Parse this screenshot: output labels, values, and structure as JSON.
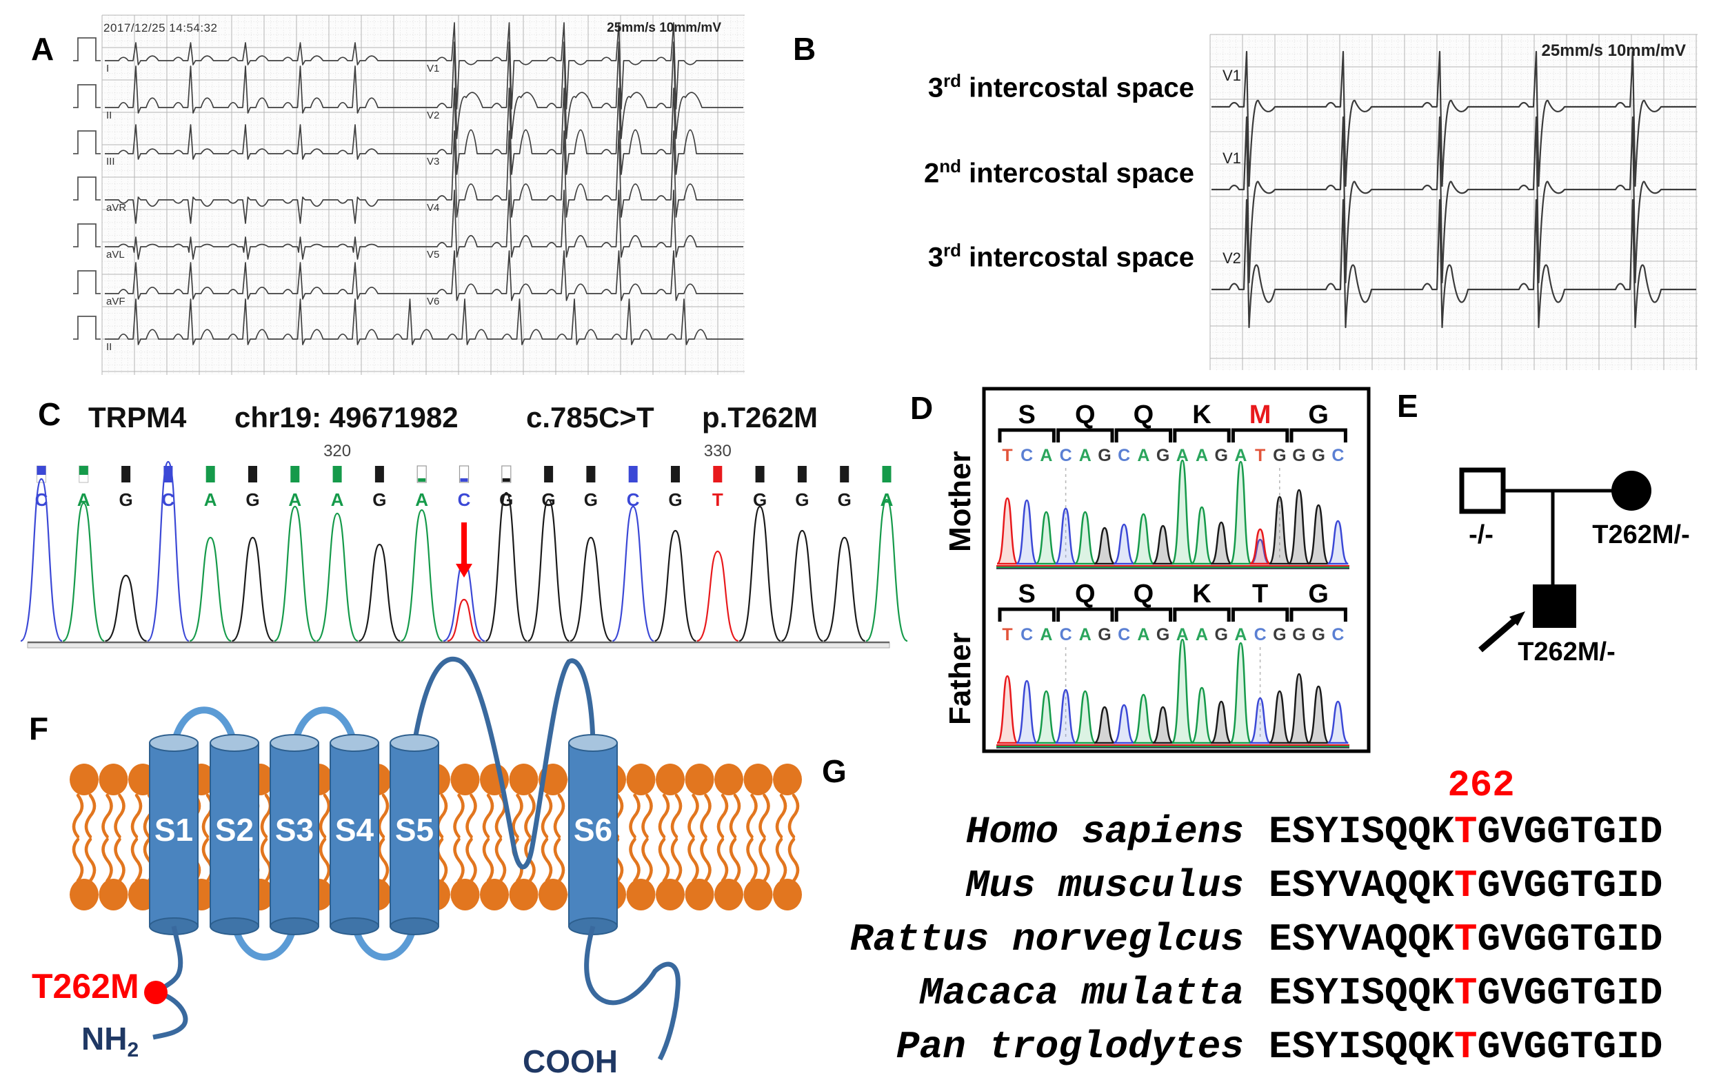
{
  "panelA": {
    "label": "A",
    "timestamp": "2017/12/25 14:54:32",
    "settings": "25mm/s 10mm/mV"
  },
  "panelB": {
    "label": "B",
    "settings": "25mm/s 10mm/mV",
    "rows": [
      {
        "num": "3",
        "ord": "rd",
        "text": " intercostal space",
        "lead": "V1"
      },
      {
        "num": "2",
        "ord": "nd",
        "text": " intercostal space",
        "lead": "V1"
      },
      {
        "num": "3",
        "ord": "rd",
        "text": " intercostal space",
        "lead": "V2"
      }
    ]
  },
  "panelC": {
    "label": "C",
    "title": {
      "gene": "TRPM4",
      "locus": "chr19: 49671982",
      "cdna": "c.785C>T",
      "protein": "p.T262M"
    },
    "ruler": [
      {
        "text": "320",
        "base": 8
      },
      {
        "text": "330",
        "base": 17
      }
    ],
    "sequence": "CAGCAGAAGACGGGCGTGGGA",
    "low_quality_bases": [
      10,
      11,
      12
    ],
    "half_bars": [
      1,
      2
    ],
    "variant_base": 11,
    "peaks": [
      235,
      200,
      95,
      260,
      150,
      150,
      195,
      185,
      140,
      190,
      115,
      215,
      205,
      150,
      195,
      160,
      130,
      195,
      160,
      150,
      205
    ],
    "het_second": {
      "b": "T",
      "h": 60
    }
  },
  "panelD": {
    "label": "D",
    "sections": [
      {
        "name": "Mother",
        "aa": [
          {
            "t": "S"
          },
          {
            "t": "Q"
          },
          {
            "t": "Q"
          },
          {
            "t": "K"
          },
          {
            "t": "M",
            "red": true
          },
          {
            "t": "G"
          }
        ],
        "seq": "TCACAGCAGAAGATGGGC",
        "peaks": [
          95,
          92,
          75,
          80,
          75,
          52,
          57,
          72,
          55,
          150,
          82,
          60,
          148,
          50,
          97,
          107,
          85,
          62
        ],
        "second": {
          "index": 14,
          "b": "C",
          "h": 35
        },
        "dashes": [
          4,
          15
        ]
      },
      {
        "name": "Father",
        "aa": [
          {
            "t": "S"
          },
          {
            "t": "Q"
          },
          {
            "t": "Q"
          },
          {
            "t": "K"
          },
          {
            "t": "T"
          },
          {
            "t": "G"
          }
        ],
        "seq": "TCACAGCAGAAGACGGGC",
        "peaks": [
          97,
          90,
          75,
          77,
          75,
          52,
          55,
          70,
          52,
          150,
          80,
          60,
          145,
          65,
          75,
          100,
          82,
          60
        ],
        "second": null,
        "dashes": [
          4,
          14
        ]
      }
    ]
  },
  "panelE": {
    "label": "E",
    "father": "-/-",
    "mother": "T262M/-",
    "proband": "T262M/-"
  },
  "panelF": {
    "label": "F",
    "segments": [
      "S1",
      "S2",
      "S3",
      "S4",
      "S5",
      "S6"
    ],
    "mutation": "T262M",
    "nterm_main": "NH",
    "nterm_sub": "2",
    "cterm": "COOH"
  },
  "panelG": {
    "label": "G",
    "residue": "262",
    "rows": [
      {
        "species": "Homo sapiens",
        "pre": "ESYISQQK",
        "res": "T",
        "post": "GVGGTGID"
      },
      {
        "species": "Mus musculus",
        "pre": "ESYVAQQK",
        "res": "T",
        "post": "GVGGTGID"
      },
      {
        "species": "Rattus norveglcus",
        "pre": "ESYVAQQK",
        "res": "T",
        "post": "GVGGTGID"
      },
      {
        "species": "Macaca mulatta",
        "pre": "ESYISQQK",
        "res": "T",
        "post": "GVGGTGID"
      },
      {
        "species": "Pan troglodytes",
        "pre": "ESYISQQK",
        "res": "T",
        "post": "GVGGTGID"
      }
    ]
  },
  "colors": {
    "base_strong": {
      "A": "#159a4a",
      "C": "#3b48d6",
      "G": "#1a1a1a",
      "T": "#e8191c"
    },
    "base_soft": {
      "A": "#2aa55c",
      "C": "#5a7fd3",
      "G": "#3c3c3c",
      "T": "#e2543a"
    },
    "peak_fill": {
      "A": "rgba(60,190,100,0.18)",
      "C": "rgba(90,120,220,0.18)",
      "G": "rgba(120,120,120,0.32)",
      "T": "rgba(230,90,70,0.20)"
    },
    "accent_red": "#ff0000",
    "trace": "#3f3f3f",
    "grid_major": "#b4b4b4",
    "grid_minor": "#d9d9d9",
    "lipid": "#e2761f",
    "cylinder": "#4a84bf",
    "cylinder_top": "#a7c4de",
    "cylinder_dark": "#3f74a8",
    "cylinder_stroke": "#2d5f8e",
    "loop_light": "#5b9bd5",
    "loop_dark": "#39699e",
    "navy": "#1f3864"
  },
  "ecg": {
    "a": {
      "cal_amp": 33,
      "beat_dx": 79.5,
      "baselines": [
        74,
        142,
        209,
        276,
        344,
        412,
        478
      ],
      "left": [
        {
          "lead": "I",
          "p": 4,
          "r": 26,
          "s": -6,
          "t": 6
        },
        {
          "lead": "II",
          "p": 6,
          "r": 60,
          "s": -8,
          "t": 12
        },
        {
          "lead": "III",
          "p": 4,
          "r": 42,
          "s": -8,
          "t": 6
        },
        {
          "lead": "aVR",
          "p": -4,
          "r": -34,
          "s": 4,
          "t": -8
        },
        {
          "lead": "aVL",
          "p": 3,
          "q": -8,
          "r": 14,
          "s": -18,
          "t": 3
        },
        {
          "lead": "aVF",
          "p": 5,
          "r": 45,
          "s": -8,
          "t": 8
        }
      ],
      "right": [
        {
          "lead": "V1",
          "p": 4,
          "r": 55,
          "s": -70,
          "t": -5
        },
        {
          "lead": "V2",
          "p": 5,
          "r": 95,
          "s": -45,
          "dome": 26,
          "t": 14
        },
        {
          "lead": "V3",
          "p": 5,
          "r": 95,
          "s": -30,
          "t": 30
        },
        {
          "lead": "V4",
          "p": 5,
          "r": 100,
          "s": -25,
          "t": 20
        },
        {
          "lead": "V5",
          "p": 5,
          "r": 82,
          "s": -15,
          "t": 14
        },
        {
          "lead": "V6",
          "p": 5,
          "r": 62,
          "s": -10,
          "t": 12
        }
      ],
      "rhythm": {
        "lead": "II",
        "p": 6,
        "r": 58,
        "s": -8,
        "t": 12
      }
    },
    "b": {
      "beat_dx": 140,
      "baselines": [
        105,
        225,
        370
      ],
      "rows": [
        {
          "lead": "V1",
          "p": 5,
          "r": 80,
          "s": -115,
          "dome": 16,
          "t": -9
        },
        {
          "lead": "V1",
          "p": 5,
          "r": 105,
          "s": -135,
          "dome": 20,
          "t": -8
        },
        {
          "lead": "V2",
          "p": 7,
          "r": 130,
          "s": -55,
          "dome": 56,
          "t": -26
        }
      ]
    }
  }
}
